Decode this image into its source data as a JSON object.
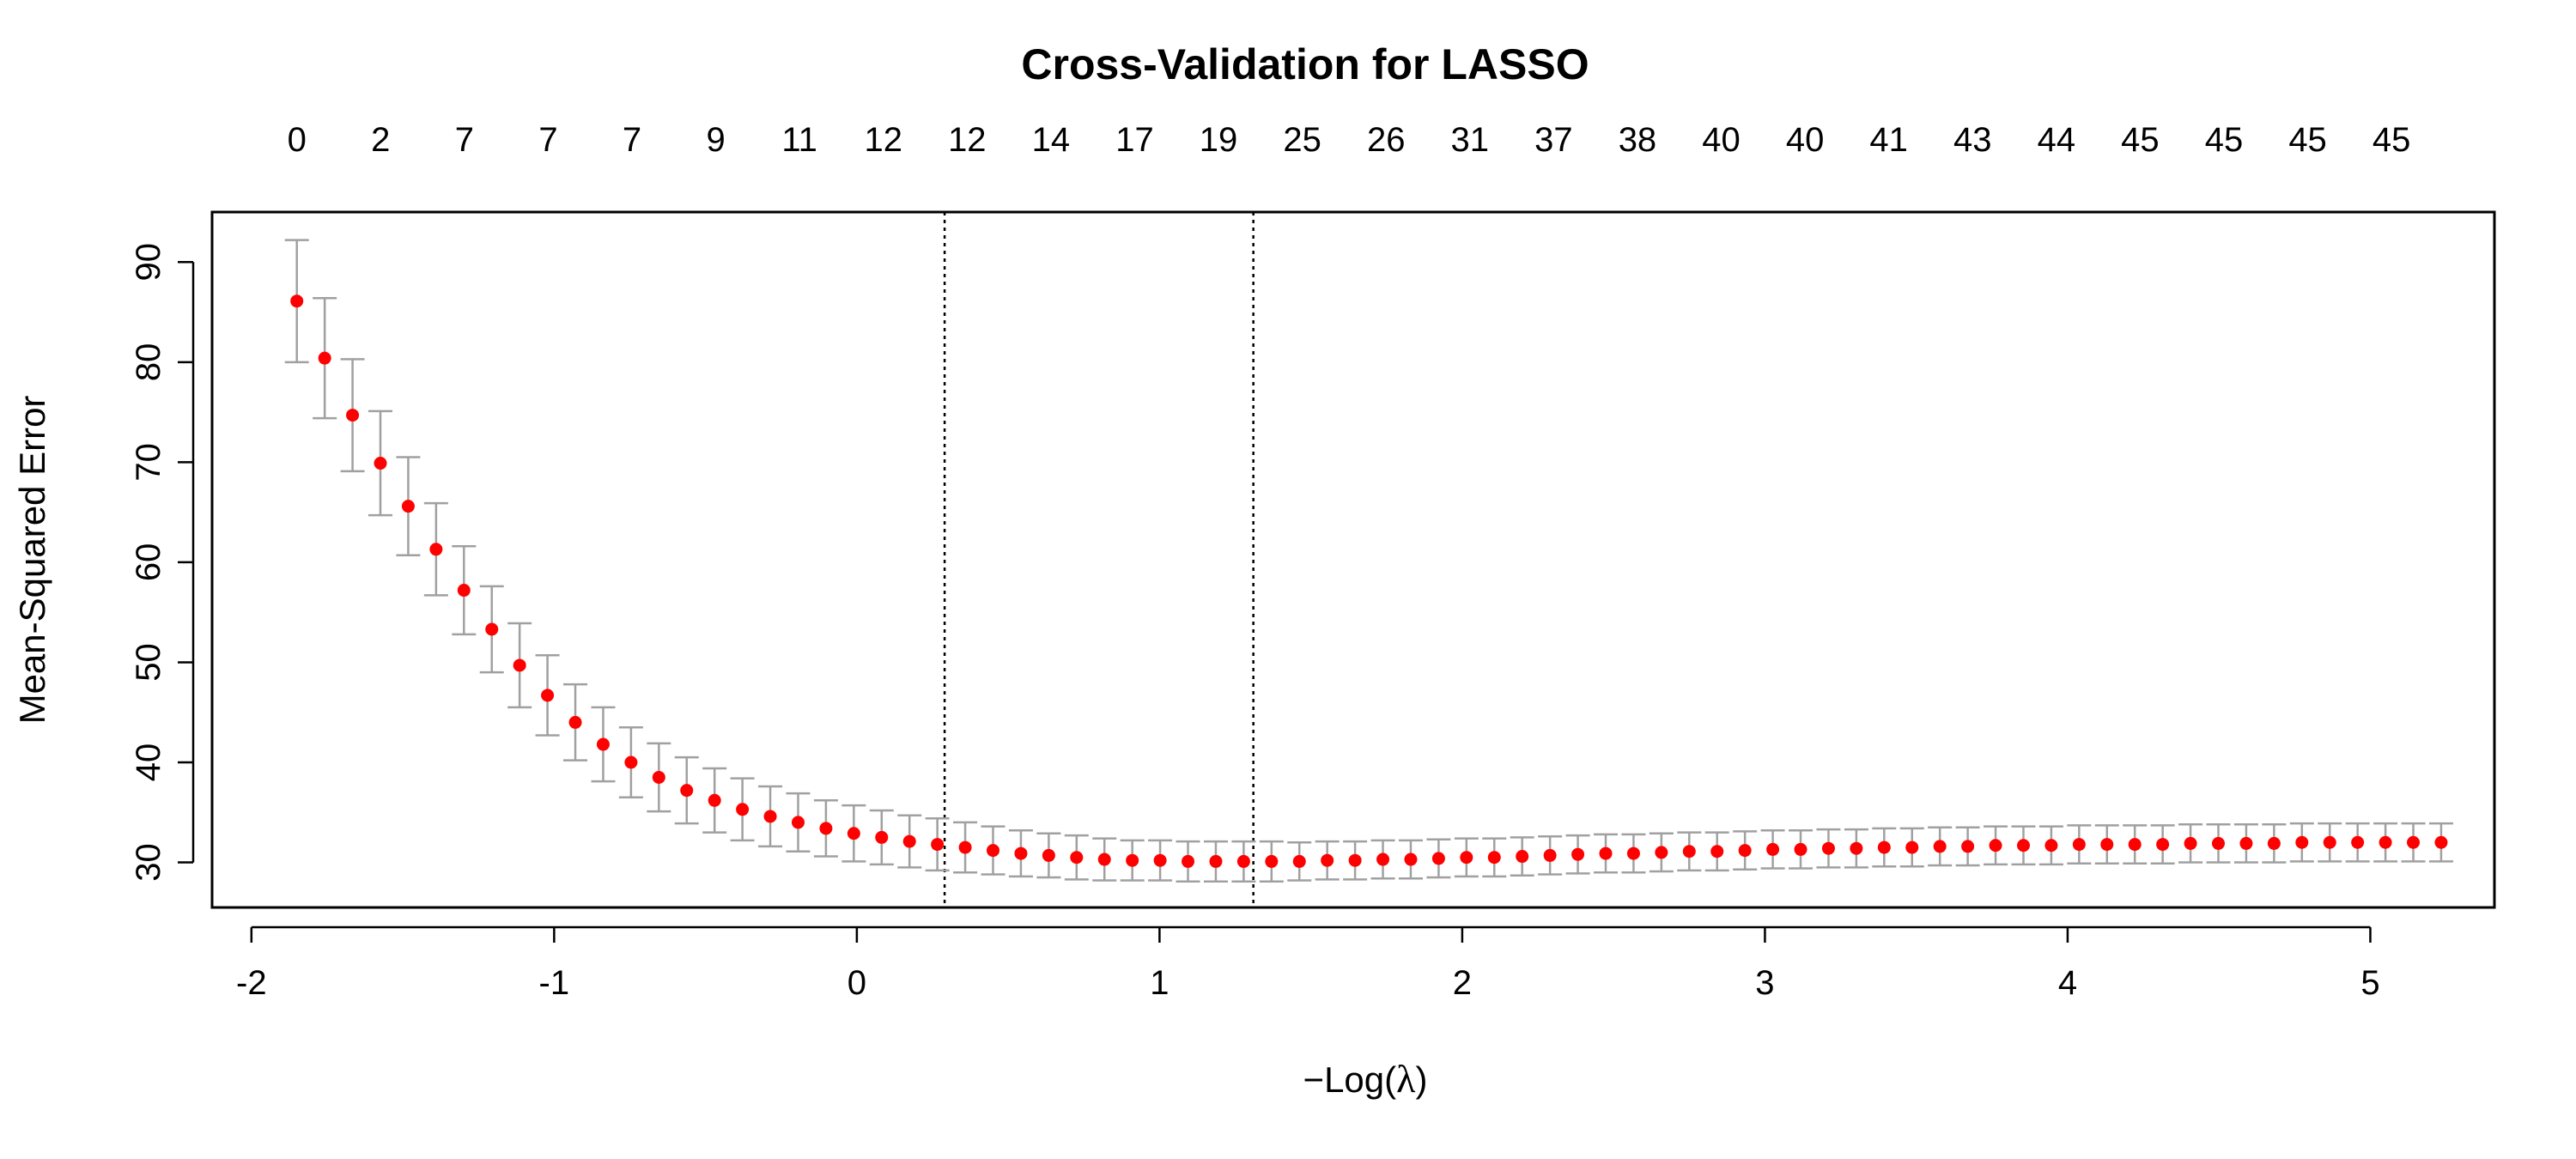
{
  "chart_data": {
    "type": "scatter",
    "title": "Cross-Validation for LASSO",
    "xlabel_prefix": "−Log(",
    "xlabel_symbol": "λ",
    "xlabel_suffix": ")",
    "ylabel": "Mean-Squared Error",
    "xlim": [
      -2.13,
      5.41
    ],
    "ylim": [
      25.5,
      95
    ],
    "x_ticks": [
      -2,
      -1,
      0,
      1,
      2,
      3,
      4,
      5
    ],
    "y_ticks": [
      30,
      40,
      50,
      60,
      70,
      80,
      90
    ],
    "top_axis_labels": [
      0,
      2,
      7,
      7,
      7,
      9,
      11,
      12,
      12,
      14,
      17,
      19,
      25,
      26,
      31,
      37,
      38,
      40,
      40,
      41,
      43,
      44,
      45,
      45,
      45,
      45
    ],
    "top_axis_first_x": -1.85,
    "top_axis_step": 0.2768,
    "x_start": -1.85,
    "x_step": 0.092,
    "y": [
      86.1,
      80.4,
      74.7,
      69.9,
      65.6,
      61.3,
      57.2,
      53.3,
      49.7,
      46.7,
      44.0,
      41.8,
      40.0,
      38.5,
      37.2,
      36.2,
      35.3,
      34.6,
      34.0,
      33.4,
      32.9,
      32.5,
      32.1,
      31.8,
      31.5,
      31.2,
      30.9,
      30.7,
      30.5,
      30.3,
      30.2,
      30.2,
      30.1,
      30.1,
      30.1,
      30.1,
      30.1,
      30.2,
      30.2,
      30.3,
      30.3,
      30.4,
      30.5,
      30.5,
      30.6,
      30.7,
      30.8,
      30.9,
      30.9,
      31.0,
      31.1,
      31.1,
      31.2,
      31.3,
      31.3,
      31.4,
      31.4,
      31.5,
      31.5,
      31.6,
      31.6,
      31.7,
      31.7,
      31.7,
      31.8,
      31.8,
      31.8,
      31.8,
      31.9,
      31.9,
      31.9,
      31.9,
      32.0,
      32.0,
      32.0,
      32.0,
      32.0,
      32.0
    ],
    "se": [
      6.1,
      6.0,
      5.6,
      5.2,
      4.9,
      4.6,
      4.4,
      4.3,
      4.2,
      4.0,
      3.8,
      3.7,
      3.5,
      3.4,
      3.3,
      3.2,
      3.1,
      3.0,
      2.9,
      2.8,
      2.8,
      2.7,
      2.6,
      2.6,
      2.5,
      2.4,
      2.3,
      2.2,
      2.2,
      2.1,
      2.0,
      2.0,
      2.0,
      2.0,
      2.0,
      2.0,
      1.9,
      1.9,
      1.9,
      1.9,
      1.9,
      1.9,
      1.9,
      1.9,
      1.9,
      1.9,
      1.9,
      1.9,
      1.9,
      1.9,
      1.9,
      1.9,
      1.9,
      1.9,
      1.9,
      1.9,
      1.9,
      1.9,
      1.9,
      1.9,
      1.9,
      1.9,
      1.9,
      1.9,
      1.9,
      1.9,
      1.9,
      1.9,
      1.9,
      1.9,
      1.9,
      1.9,
      1.9,
      1.9,
      1.9,
      1.9,
      1.9,
      1.9
    ],
    "vlines": [
      0.29,
      1.31
    ],
    "point_color": "#ff0000",
    "errorbar_color": "#a0a0a0",
    "grid": false,
    "legend": "none"
  }
}
